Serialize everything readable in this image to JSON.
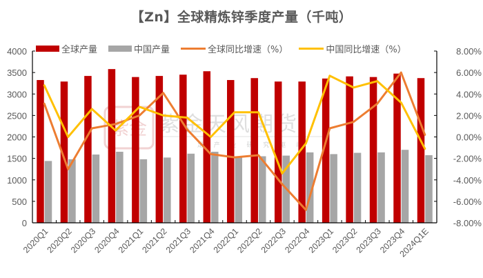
{
  "title": "【Zn】全球精炼锌季度产量（千吨）",
  "watermark": {
    "main": "紫金天风期货",
    "sub": "立 足 产 业 研 究 驱 动"
  },
  "colors": {
    "global_output": "#C00000",
    "china_output": "#A6A6A6",
    "global_yoy": "#ED7D31",
    "china_yoy": "#FFC000",
    "axis_text": "#595959",
    "axis_line": "#000000"
  },
  "legend": [
    {
      "label": "全球产量",
      "type": "bar",
      "color_key": "global_output"
    },
    {
      "label": "中国产量",
      "type": "bar",
      "color_key": "china_output"
    },
    {
      "label": "全球同比增速（%）",
      "type": "line",
      "color_key": "global_yoy"
    },
    {
      "label": "中国同比增速（%）",
      "type": "line",
      "color_key": "china_yoy"
    }
  ],
  "chart_data": {
    "type": "bar",
    "title": "【Zn】全球精炼锌季度产量（千吨）",
    "xlabel": "",
    "ylabel": "",
    "categories": [
      "2020Q1",
      "2020Q2",
      "2020Q3",
      "2020Q4",
      "2021Q1",
      "2021Q2",
      "2021Q3",
      "2021Q4",
      "2022Q1",
      "2022Q2",
      "2022Q3",
      "2022Q4",
      "2023Q1",
      "2023Q2",
      "2023Q3",
      "2023Q4",
      "2024Q1E"
    ],
    "series": [
      {
        "name": "全球产量",
        "type": "bar",
        "axis": "left",
        "values": [
          3325,
          3290,
          3420,
          3580,
          3395,
          3420,
          3450,
          3530,
          3325,
          3370,
          3290,
          3290,
          3360,
          3410,
          3395,
          3475,
          3370
        ]
      },
      {
        "name": "中国产量",
        "type": "bar",
        "axis": "left",
        "values": [
          1440,
          1480,
          1590,
          1655,
          1480,
          1520,
          1610,
          1655,
          1520,
          1550,
          1565,
          1640,
          1600,
          1630,
          1640,
          1700,
          1575
        ]
      },
      {
        "name": "全球同比增速（%）",
        "type": "line",
        "axis": "right",
        "values": [
          3.1,
          -3.0,
          0.8,
          1.2,
          2.0,
          4.1,
          0.7,
          -1.6,
          -1.9,
          -1.7,
          -4.4,
          -6.8,
          0.8,
          1.4,
          3.1,
          6.0,
          0.2
        ]
      },
      {
        "name": "中国同比增速（%）",
        "type": "line",
        "axis": "right",
        "values": [
          4.8,
          0.0,
          2.6,
          0.6,
          2.8,
          2.0,
          1.8,
          0.0,
          2.3,
          2.3,
          -3.4,
          -0.6,
          5.7,
          4.6,
          5.2,
          3.2,
          -1.1
        ]
      }
    ],
    "ylim": [
      0,
      4000
    ],
    "y_ticks": [
      0,
      500,
      1000,
      1500,
      2000,
      2500,
      3000,
      3500,
      4000
    ],
    "y2lim": [
      -8,
      8
    ],
    "y2_ticks": [
      "-8.00%",
      "-6.00%",
      "-4.00%",
      "-2.00%",
      "0.00%",
      "2.00%",
      "4.00%",
      "6.00%",
      "8.00%"
    ],
    "grid": false,
    "legend_position": "top"
  }
}
